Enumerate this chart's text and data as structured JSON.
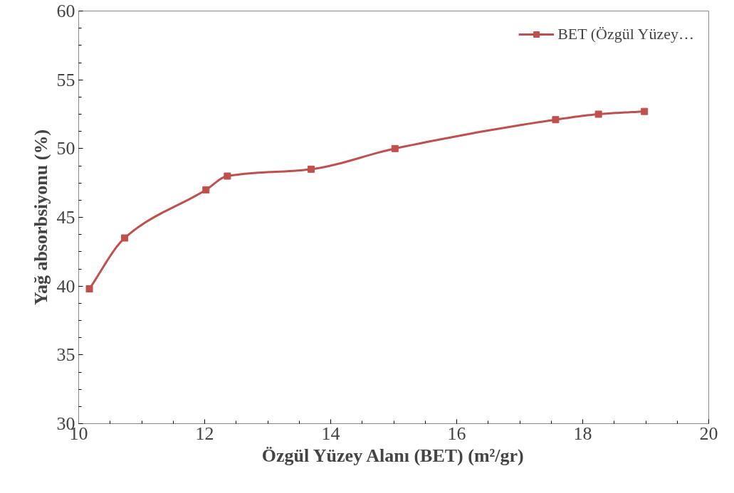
{
  "chart_data": {
    "type": "line",
    "xlabel": "Özgül Yüzey Alanı (BET) (m²/gr)",
    "ylabel": "Yağ absorbsiyonu (%)",
    "xlim": [
      10,
      20
    ],
    "xticks": [
      10,
      12,
      14,
      16,
      18,
      20
    ],
    "ylim": [
      30,
      60
    ],
    "yticks": [
      30,
      35,
      40,
      45,
      50,
      55,
      60
    ],
    "grid": false,
    "legend": "top right",
    "marker": "square",
    "line_style": "solid",
    "series": [
      {
        "name": "BET (Özgül Yüzey…",
        "color": "#c0504d",
        "x": [
          10.17,
          10.73,
          12.02,
          12.36,
          13.69,
          15.02,
          17.57,
          18.25,
          18.98
        ],
        "values": [
          39.8,
          43.5,
          47.0,
          48.0,
          48.5,
          50.0,
          52.1,
          52.5,
          52.7
        ]
      }
    ]
  }
}
